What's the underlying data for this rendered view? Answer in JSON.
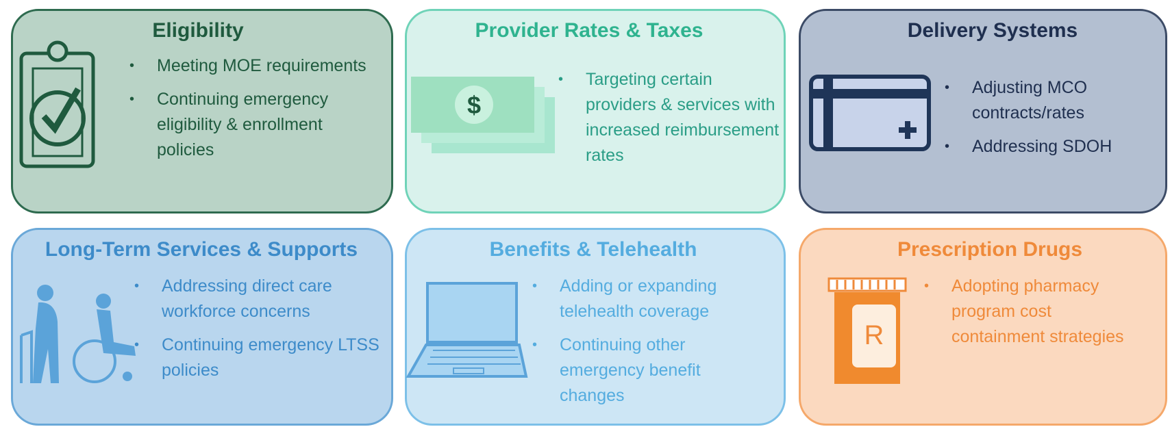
{
  "panels": [
    {
      "title": "Eligibility",
      "bullets": [
        "Meeting MOE requirements",
        "Continuing emergency eligibility & enrollment policies"
      ]
    },
    {
      "title": "Provider Rates & Taxes",
      "bullets": [
        "Targeting certain providers & services with increased reimbursement rates"
      ]
    },
    {
      "title": "Delivery Systems",
      "bullets": [
        "Adjusting MCO contracts/rates",
        "Addressing SDOH"
      ]
    },
    {
      "title": "Long-Term Services & Supports",
      "bullets": [
        "Addressing direct care workforce concerns",
        "Continuing emergency LTSS policies"
      ]
    },
    {
      "title": "Benefits & Telehealth",
      "bullets": [
        "Adding or expanding telehealth coverage",
        "Continuing other emergency benefit changes"
      ]
    },
    {
      "title": "Prescription Drugs",
      "bullets": [
        "Adopting pharmacy program cost containment strategies"
      ]
    }
  ]
}
